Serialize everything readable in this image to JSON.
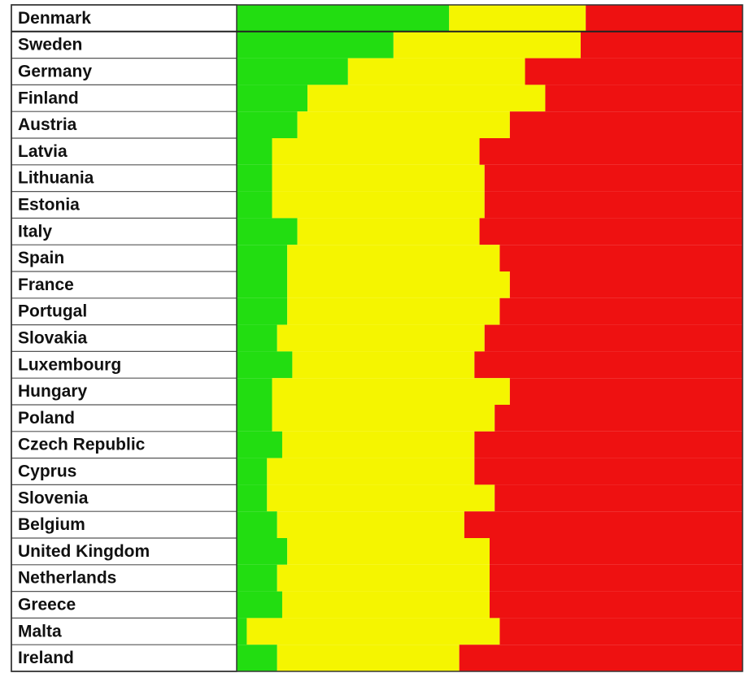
{
  "chart_data": {
    "type": "stacked_barh",
    "categories": [
      "Denmark",
      "Sweden",
      "Germany",
      "Finland",
      "Austria",
      "Latvia",
      "Lithuania",
      "Estonia",
      "Italy",
      "Spain",
      "France",
      "Portugal",
      "Slovakia",
      "Luxembourg",
      "Hungary",
      "Poland",
      "Czech Republic",
      "Cyprus",
      "Slovenia",
      "Belgium",
      "United Kingdom",
      "Netherlands",
      "Greece",
      "Malta",
      "Ireland"
    ],
    "series": [
      {
        "color": "#22dd11",
        "values": [
          42,
          31,
          22,
          14,
          12,
          7,
          7,
          7,
          12,
          10,
          10,
          10,
          8,
          11,
          7,
          7,
          9,
          6,
          6,
          8,
          10,
          8,
          9,
          2,
          8
        ]
      },
      {
        "color": "#f5f500",
        "values": [
          27,
          37,
          35,
          47,
          42,
          41,
          42,
          42,
          36,
          42,
          44,
          42,
          41,
          36,
          47,
          44,
          38,
          41,
          45,
          37,
          40,
          42,
          41,
          50,
          36
        ]
      },
      {
        "color": "#ee1111",
        "values": [
          31,
          32,
          43,
          39,
          46,
          52,
          51,
          51,
          52,
          48,
          46,
          48,
          51,
          53,
          46,
          49,
          53,
          53,
          49,
          55,
          50,
          50,
          50,
          48,
          56
        ]
      }
    ],
    "xlim": [
      0,
      100
    ]
  }
}
